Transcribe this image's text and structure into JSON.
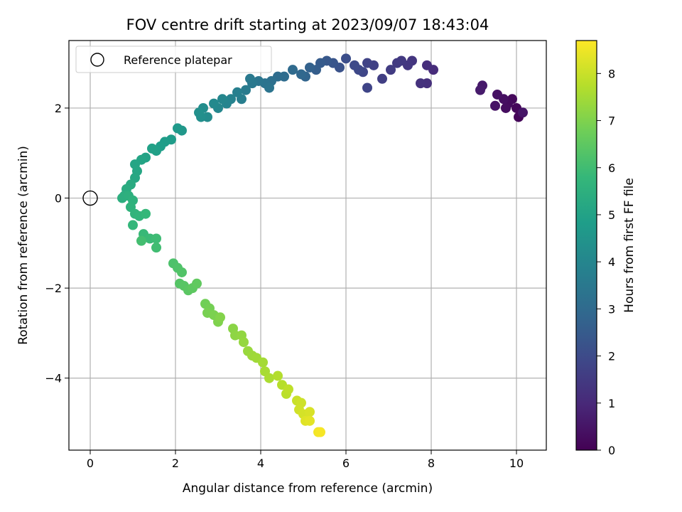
{
  "chart_data": {
    "type": "scatter",
    "title": "FOV centre drift starting at 2023/09/07 18:43:04",
    "xlabel": "Angular distance from reference (arcmin)",
    "ylabel": "Rotation from reference (arcmin)",
    "xlim": [
      -0.5,
      10.7
    ],
    "ylim": [
      -5.6,
      3.5
    ],
    "xticks": [
      0,
      2,
      4,
      6,
      8,
      10
    ],
    "yticks": [
      -4,
      -2,
      0,
      2
    ],
    "grid": true,
    "legend": {
      "position": "top-left",
      "entries": [
        {
          "label": "Reference platepar",
          "marker": "open-circle"
        }
      ]
    },
    "reference_point": {
      "x": 0,
      "y": 0
    },
    "colorbar": {
      "label": "Hours from first FF file",
      "range": [
        0,
        8.7
      ],
      "ticks": [
        0,
        1,
        2,
        3,
        4,
        5,
        6,
        7,
        8
      ],
      "colormap": "viridis"
    },
    "points": [
      {
        "x": 10.1,
        "y": 1.9,
        "t": 0.05
      },
      {
        "x": 10.05,
        "y": 1.8,
        "t": 0.1
      },
      {
        "x": 10.0,
        "y": 2.0,
        "t": 0.15
      },
      {
        "x": 9.9,
        "y": 2.2,
        "t": 0.2
      },
      {
        "x": 9.8,
        "y": 2.1,
        "t": 0.25
      },
      {
        "x": 9.75,
        "y": 2.0,
        "t": 0.3
      },
      {
        "x": 9.7,
        "y": 2.2,
        "t": 0.35
      },
      {
        "x": 9.55,
        "y": 2.3,
        "t": 0.4
      },
      {
        "x": 9.5,
        "y": 2.05,
        "t": 0.45
      },
      {
        "x": 10.15,
        "y": 1.9,
        "t": 0.5
      },
      {
        "x": 9.2,
        "y": 2.5,
        "t": 0.6
      },
      {
        "x": 9.15,
        "y": 2.4,
        "t": 0.65
      },
      {
        "x": 8.05,
        "y": 2.85,
        "t": 1.1
      },
      {
        "x": 7.9,
        "y": 2.95,
        "t": 1.15
      },
      {
        "x": 7.9,
        "y": 2.55,
        "t": 1.2
      },
      {
        "x": 7.75,
        "y": 2.55,
        "t": 1.25
      },
      {
        "x": 7.55,
        "y": 3.05,
        "t": 1.35
      },
      {
        "x": 7.45,
        "y": 2.95,
        "t": 1.4
      },
      {
        "x": 7.3,
        "y": 3.05,
        "t": 1.45
      },
      {
        "x": 7.2,
        "y": 3.0,
        "t": 1.5
      },
      {
        "x": 7.05,
        "y": 2.85,
        "t": 1.55
      },
      {
        "x": 6.85,
        "y": 2.65,
        "t": 1.6
      },
      {
        "x": 6.65,
        "y": 2.95,
        "t": 1.7
      },
      {
        "x": 6.5,
        "y": 3.0,
        "t": 1.75
      },
      {
        "x": 6.5,
        "y": 2.45,
        "t": 1.8
      },
      {
        "x": 6.4,
        "y": 2.8,
        "t": 1.85
      },
      {
        "x": 6.3,
        "y": 2.85,
        "t": 1.9
      },
      {
        "x": 6.2,
        "y": 2.95,
        "t": 1.95
      },
      {
        "x": 6.0,
        "y": 3.1,
        "t": 2.1
      },
      {
        "x": 5.85,
        "y": 2.9,
        "t": 2.2
      },
      {
        "x": 5.7,
        "y": 3.0,
        "t": 2.3
      },
      {
        "x": 5.55,
        "y": 3.05,
        "t": 2.4
      },
      {
        "x": 5.4,
        "y": 3.0,
        "t": 2.5
      },
      {
        "x": 5.3,
        "y": 2.85,
        "t": 2.6
      },
      {
        "x": 5.15,
        "y": 2.9,
        "t": 2.7
      },
      {
        "x": 5.05,
        "y": 2.7,
        "t": 2.8
      },
      {
        "x": 4.95,
        "y": 2.75,
        "t": 2.9
      },
      {
        "x": 4.75,
        "y": 2.85,
        "t": 3.0
      },
      {
        "x": 4.55,
        "y": 2.7,
        "t": 3.05
      },
      {
        "x": 4.4,
        "y": 2.7,
        "t": 3.1
      },
      {
        "x": 4.25,
        "y": 2.6,
        "t": 3.2
      },
      {
        "x": 4.1,
        "y": 2.55,
        "t": 3.3
      },
      {
        "x": 4.2,
        "y": 2.45,
        "t": 3.35
      },
      {
        "x": 3.95,
        "y": 2.6,
        "t": 3.4
      },
      {
        "x": 3.8,
        "y": 2.55,
        "t": 3.5
      },
      {
        "x": 3.75,
        "y": 2.65,
        "t": 3.55
      },
      {
        "x": 3.65,
        "y": 2.4,
        "t": 3.6
      },
      {
        "x": 3.55,
        "y": 2.2,
        "t": 3.7
      },
      {
        "x": 3.45,
        "y": 2.35,
        "t": 3.75
      },
      {
        "x": 3.3,
        "y": 2.2,
        "t": 3.85
      },
      {
        "x": 3.2,
        "y": 2.1,
        "t": 3.95
      },
      {
        "x": 3.1,
        "y": 2.2,
        "t": 4.0
      },
      {
        "x": 3.0,
        "y": 2.0,
        "t": 4.05
      },
      {
        "x": 2.9,
        "y": 2.1,
        "t": 4.1
      },
      {
        "x": 2.75,
        "y": 1.8,
        "t": 4.2
      },
      {
        "x": 2.65,
        "y": 2.0,
        "t": 4.25
      },
      {
        "x": 2.6,
        "y": 1.8,
        "t": 4.3
      },
      {
        "x": 2.55,
        "y": 1.9,
        "t": 4.35
      },
      {
        "x": 2.15,
        "y": 1.5,
        "t": 4.6
      },
      {
        "x": 2.05,
        "y": 1.55,
        "t": 4.65
      },
      {
        "x": 1.9,
        "y": 1.3,
        "t": 4.75
      },
      {
        "x": 1.75,
        "y": 1.25,
        "t": 4.8
      },
      {
        "x": 1.65,
        "y": 1.15,
        "t": 4.85
      },
      {
        "x": 1.55,
        "y": 1.05,
        "t": 4.9
      },
      {
        "x": 1.45,
        "y": 1.1,
        "t": 4.95
      },
      {
        "x": 1.3,
        "y": 0.9,
        "t": 5.0
      },
      {
        "x": 1.2,
        "y": 0.85,
        "t": 5.05
      },
      {
        "x": 1.05,
        "y": 0.75,
        "t": 5.1
      },
      {
        "x": 1.1,
        "y": 0.6,
        "t": 5.15
      },
      {
        "x": 1.05,
        "y": 0.45,
        "t": 5.2
      },
      {
        "x": 0.95,
        "y": 0.3,
        "t": 5.3
      },
      {
        "x": 0.85,
        "y": 0.2,
        "t": 5.35
      },
      {
        "x": 0.8,
        "y": 0.05,
        "t": 5.4
      },
      {
        "x": 0.75,
        "y": 0.0,
        "t": 5.45
      },
      {
        "x": 0.9,
        "y": 0.05,
        "t": 5.5
      },
      {
        "x": 1.0,
        "y": -0.05,
        "t": 5.55
      },
      {
        "x": 0.95,
        "y": -0.2,
        "t": 5.6
      },
      {
        "x": 1.05,
        "y": -0.35,
        "t": 5.65
      },
      {
        "x": 1.15,
        "y": -0.4,
        "t": 5.7
      },
      {
        "x": 1.0,
        "y": -0.6,
        "t": 5.75
      },
      {
        "x": 1.3,
        "y": -0.35,
        "t": 5.8
      },
      {
        "x": 1.25,
        "y": -0.8,
        "t": 5.85
      },
      {
        "x": 1.4,
        "y": -0.9,
        "t": 5.9
      },
      {
        "x": 1.55,
        "y": -0.9,
        "t": 5.95
      },
      {
        "x": 1.55,
        "y": -1.1,
        "t": 6.0
      },
      {
        "x": 1.2,
        "y": -0.95,
        "t": 6.05
      },
      {
        "x": 1.95,
        "y": -1.45,
        "t": 6.2
      },
      {
        "x": 2.05,
        "y": -1.55,
        "t": 6.25
      },
      {
        "x": 2.15,
        "y": -1.65,
        "t": 6.3
      },
      {
        "x": 2.1,
        "y": -1.9,
        "t": 6.35
      },
      {
        "x": 2.2,
        "y": -1.95,
        "t": 6.4
      },
      {
        "x": 2.3,
        "y": -2.05,
        "t": 6.45
      },
      {
        "x": 2.4,
        "y": -2.0,
        "t": 6.5
      },
      {
        "x": 2.5,
        "y": -1.9,
        "t": 6.55
      },
      {
        "x": 2.7,
        "y": -2.35,
        "t": 6.8
      },
      {
        "x": 2.8,
        "y": -2.45,
        "t": 6.85
      },
      {
        "x": 2.75,
        "y": -2.55,
        "t": 6.9
      },
      {
        "x": 2.9,
        "y": -2.6,
        "t": 6.95
      },
      {
        "x": 3.0,
        "y": -2.75,
        "t": 7.0
      },
      {
        "x": 3.05,
        "y": -2.65,
        "t": 7.05
      },
      {
        "x": 3.35,
        "y": -2.9,
        "t": 7.15
      },
      {
        "x": 3.4,
        "y": -3.05,
        "t": 7.2
      },
      {
        "x": 3.55,
        "y": -3.05,
        "t": 7.25
      },
      {
        "x": 3.6,
        "y": -3.2,
        "t": 7.3
      },
      {
        "x": 3.7,
        "y": -3.4,
        "t": 7.35
      },
      {
        "x": 3.8,
        "y": -3.5,
        "t": 7.4
      },
      {
        "x": 3.9,
        "y": -3.55,
        "t": 7.45
      },
      {
        "x": 4.05,
        "y": -3.65,
        "t": 7.5
      },
      {
        "x": 4.1,
        "y": -3.85,
        "t": 7.55
      },
      {
        "x": 4.2,
        "y": -4.0,
        "t": 7.6
      },
      {
        "x": 4.4,
        "y": -3.95,
        "t": 7.7
      },
      {
        "x": 4.5,
        "y": -4.15,
        "t": 7.75
      },
      {
        "x": 4.6,
        "y": -4.35,
        "t": 7.8
      },
      {
        "x": 4.65,
        "y": -4.25,
        "t": 7.85
      },
      {
        "x": 4.85,
        "y": -4.5,
        "t": 8.0
      },
      {
        "x": 4.95,
        "y": -4.55,
        "t": 8.05
      },
      {
        "x": 4.9,
        "y": -4.7,
        "t": 8.1
      },
      {
        "x": 5.0,
        "y": -4.8,
        "t": 8.15
      },
      {
        "x": 5.15,
        "y": -4.75,
        "t": 8.2
      },
      {
        "x": 5.05,
        "y": -4.95,
        "t": 8.3
      },
      {
        "x": 5.15,
        "y": -4.95,
        "t": 8.35
      },
      {
        "x": 5.35,
        "y": -5.2,
        "t": 8.55
      },
      {
        "x": 5.4,
        "y": -5.2,
        "t": 8.6
      }
    ]
  }
}
